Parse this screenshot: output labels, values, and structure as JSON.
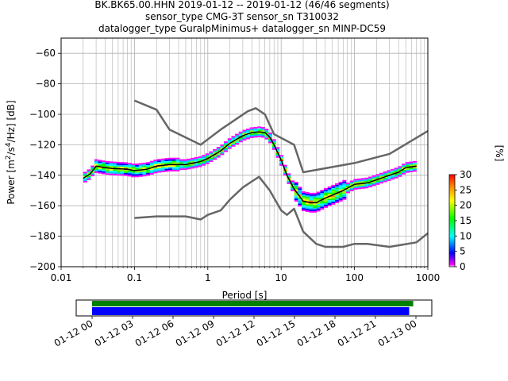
{
  "title_lines": [
    "BK.BK65.00.HHN   2019-01-12 -- 2019-01-12  (46/46 segments)",
    "sensor_type CMG-3T sensor_sn T310032",
    "datalogger_type GuralpMinimus+ datalogger_sn MINP-DC59"
  ],
  "colors": {
    "noise_model": "#666666",
    "mean_curve": "#000000",
    "grid": "#b0b0b0",
    "coverage_data": "#008000",
    "coverage_gaps": "#0000ff"
  },
  "chart_data": [
    {
      "type": "heatmap",
      "title": "BK.BK65.00.HHN   2019-01-12 -- 2019-01-12  (46/46 segments)",
      "xlabel": "Period [s]",
      "ylabel": "Power [m^2/s^4/Hz] [dB]",
      "x_scale": "log",
      "xlim": [
        0.01,
        1000
      ],
      "ylim": [
        -200,
        -50
      ],
      "x_ticks": [
        0.01,
        0.1,
        1,
        10,
        100,
        1000
      ],
      "x_tick_labels": [
        "0.01",
        "0.1",
        "1",
        "10",
        "100",
        "1000"
      ],
      "y_ticks": [
        -60,
        -80,
        -100,
        -120,
        -140,
        -160,
        -180,
        -200
      ],
      "y_tick_labels": [
        "−60",
        "−80",
        "−100",
        "−120",
        "−140",
        "−160",
        "−180",
        "−200"
      ],
      "grid": true,
      "colorbar": {
        "label": "[%]",
        "range": [
          0,
          30
        ],
        "ticks": [
          0,
          5,
          10,
          15,
          20,
          25,
          30
        ],
        "tick_labels": [
          "0",
          "5",
          "10",
          "15",
          "20",
          "25",
          "30"
        ]
      },
      "series": [
        {
          "x": [
            0.1,
            0.2,
            0.3,
            0.8,
            1.5,
            3.5,
            4.5,
            6,
            8,
            15,
            20,
            100,
            300,
            1000
          ],
          "values": [
            -91,
            -97,
            -110,
            -120,
            -110,
            -98,
            -96,
            -100,
            -113,
            -120,
            -138,
            -132,
            -126,
            -111
          ]
        },
        {
          "x": [
            0.1,
            0.2,
            0.5,
            0.8,
            1,
            1.5,
            2,
            3,
            4,
            5,
            7,
            10,
            12,
            15,
            20,
            30,
            40,
            70,
            100,
            150,
            300,
            700,
            1000
          ],
          "values": [
            -168,
            -167,
            -167,
            -169,
            -166,
            -163,
            -156,
            -148,
            -144,
            -141,
            -150,
            -163,
            -166,
            -162,
            -177,
            -185,
            -187,
            -187,
            -185,
            -185,
            -187,
            -184,
            -178
          ]
        },
        {
          "x": [
            0.02,
            0.025,
            0.03,
            0.04,
            0.05,
            0.08,
            0.1,
            0.15,
            0.2,
            0.3,
            0.5,
            0.8,
            1,
            1.5,
            2,
            3,
            4,
            5,
            6,
            7,
            8,
            10,
            12,
            15,
            20,
            25,
            30,
            40,
            50,
            70,
            100,
            150,
            200,
            300,
            400,
            500,
            700
          ],
          "values": [
            -142,
            -139,
            -134,
            -135,
            -135.5,
            -136,
            -137,
            -136,
            -134,
            -133,
            -133,
            -131,
            -129,
            -124,
            -119,
            -114,
            -112,
            -111.5,
            -112,
            -115,
            -120,
            -130,
            -140,
            -149,
            -157,
            -158,
            -158,
            -155,
            -153,
            -150,
            -146,
            -145,
            -143,
            -140,
            -138,
            -135,
            -134
          ]
        }
      ],
      "series_roles": [
        "high_noise_model",
        "low_noise_model",
        "mean"
      ]
    },
    {
      "type": "bar",
      "x_tick_labels": [
        "01-12 00",
        "01-12 03",
        "01-12 06",
        "01-12 09",
        "01-12 12",
        "01-12 15",
        "01-12 18",
        "01-12 21",
        "01-13 00"
      ],
      "x_range_hours": [
        0,
        24
      ],
      "series": [
        {
          "start_hour": 0,
          "end_hour": 23.8
        },
        {
          "start_hour": 0,
          "end_hour": 23.5
        }
      ]
    }
  ]
}
